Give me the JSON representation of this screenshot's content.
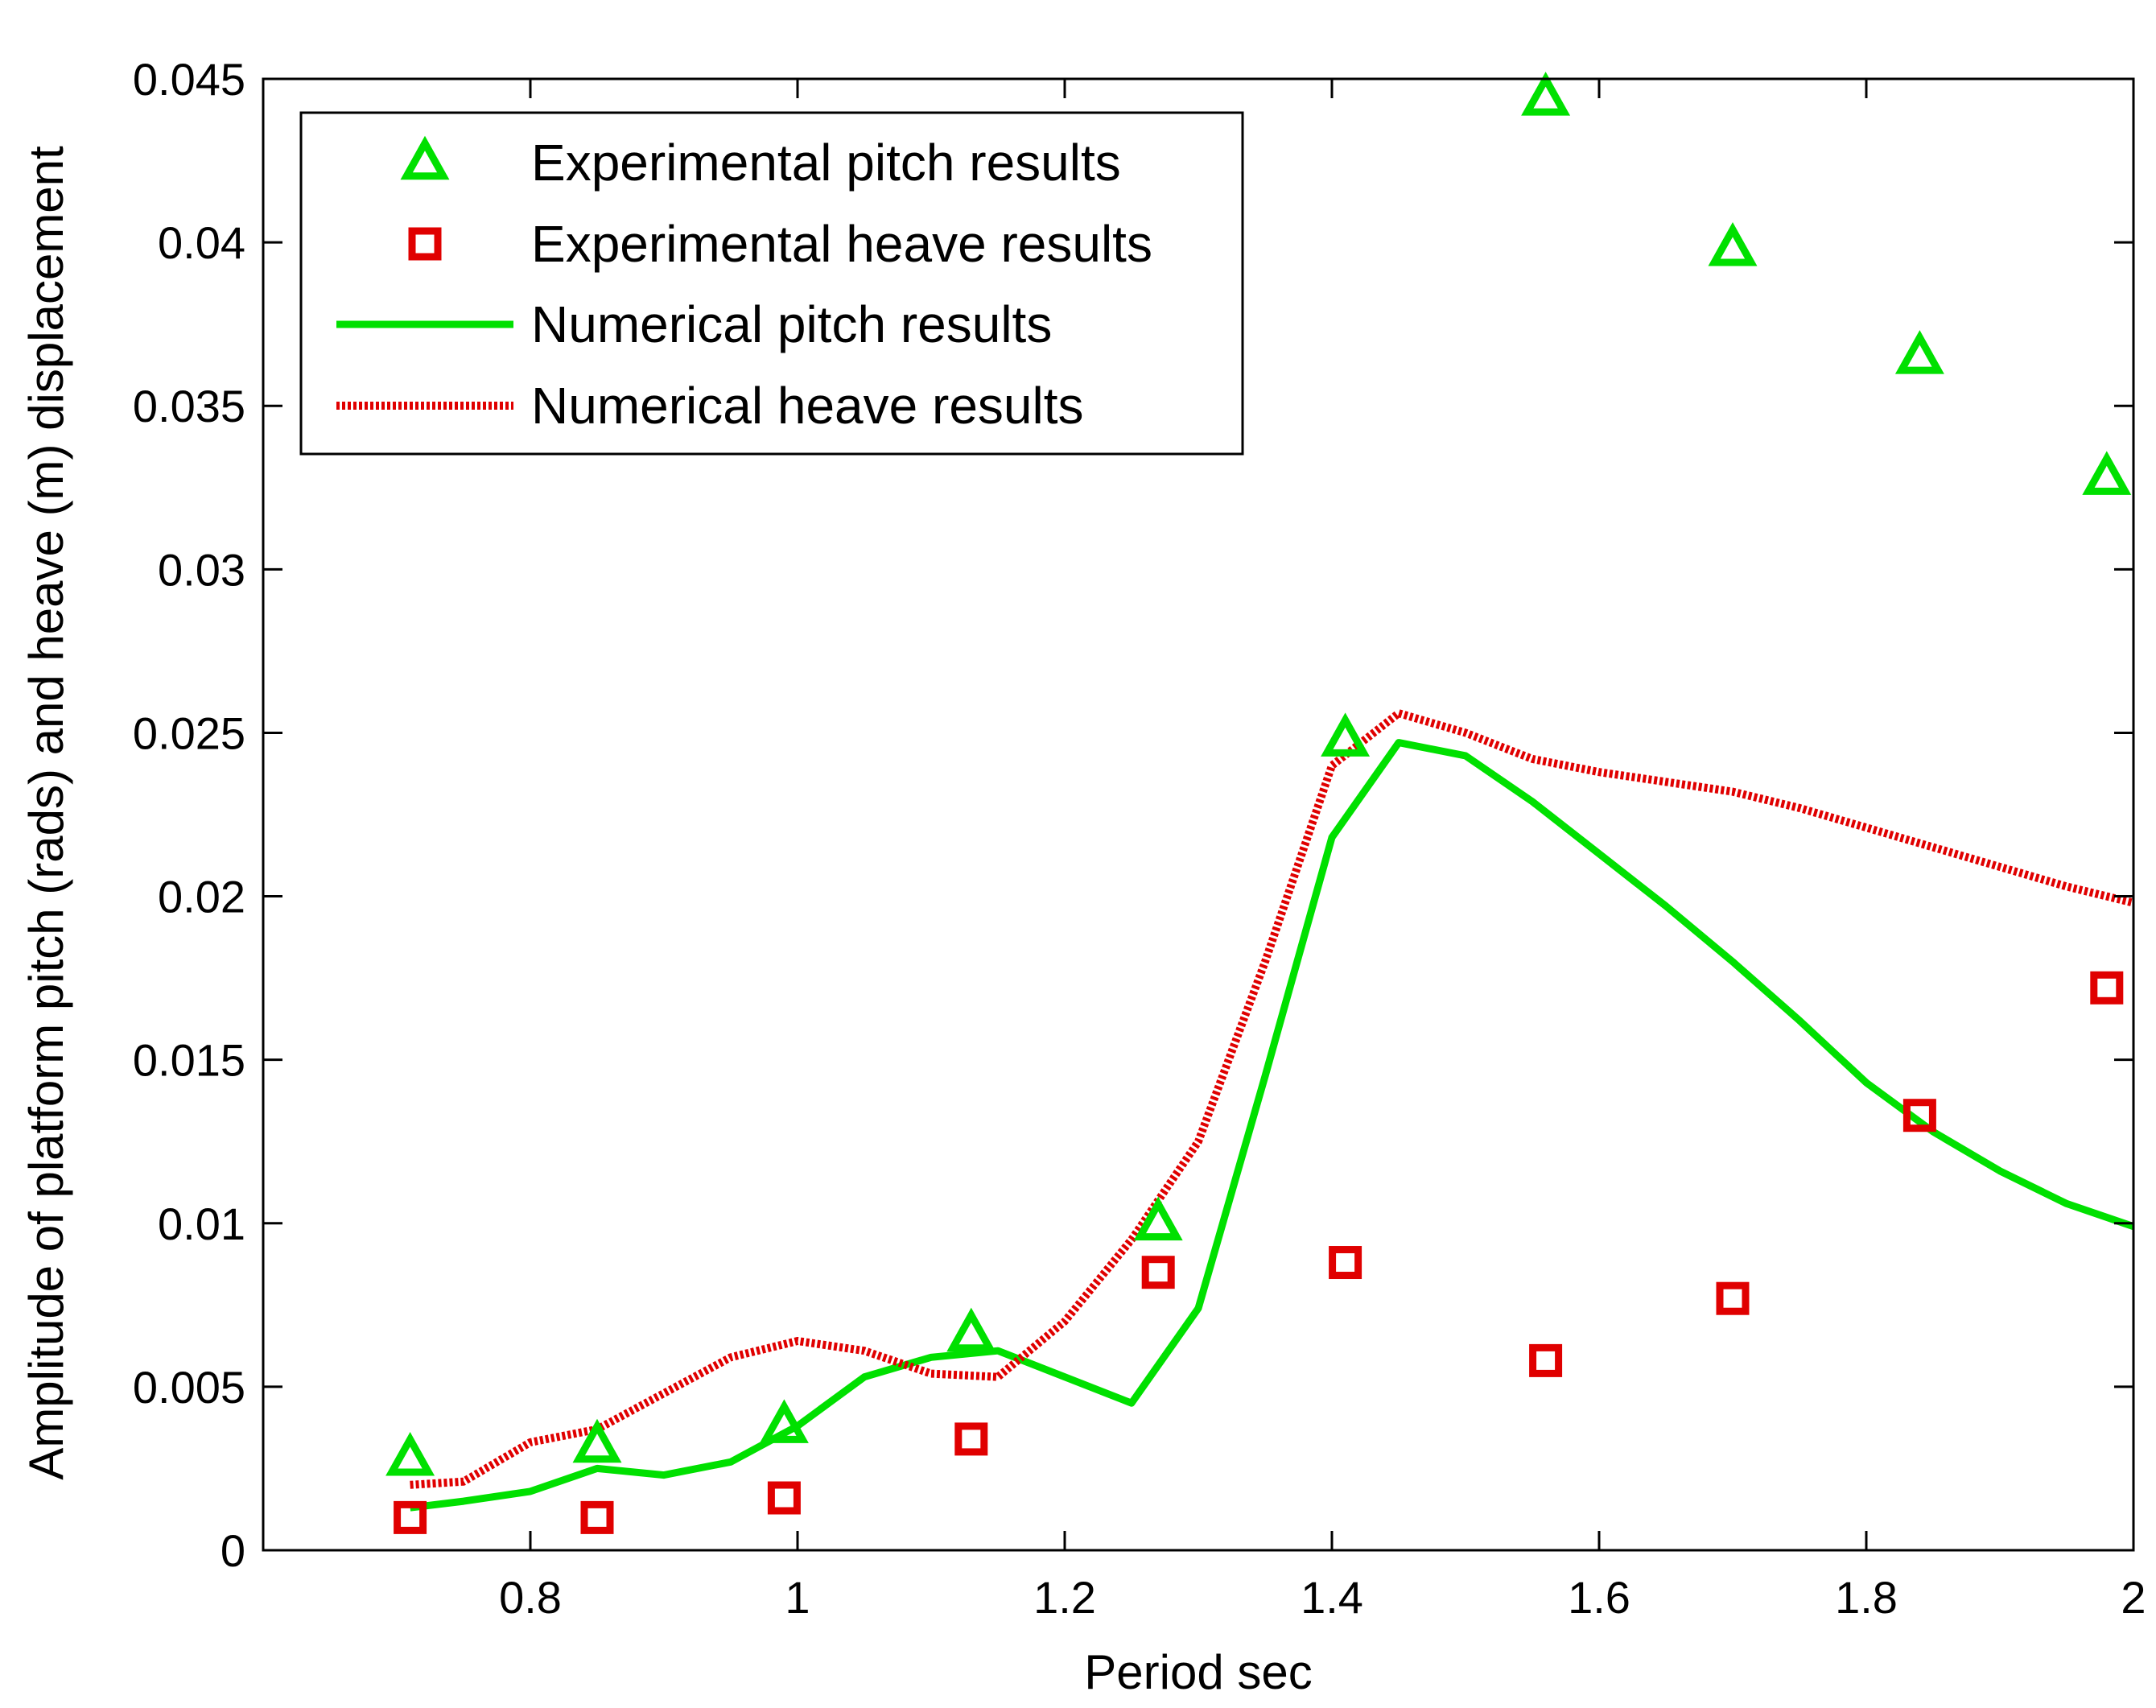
{
  "chart_data": {
    "type": "line",
    "title": "",
    "xlabel": "Period sec",
    "ylabel": "Amplitude of platform pitch (rads) and heave (m) displacement",
    "xlim": [
      0.6,
      2.0
    ],
    "ylim": [
      0,
      0.045
    ],
    "xticks": [
      0.8,
      1.0,
      1.2,
      1.4,
      1.6,
      1.8,
      2.0
    ],
    "xtick_labels": [
      "0.8",
      "1",
      "1.2",
      "1.4",
      "1.6",
      "1.8",
      "2"
    ],
    "yticks": [
      0,
      0.005,
      0.01,
      0.015,
      0.02,
      0.025,
      0.03,
      0.035,
      0.04,
      0.045
    ],
    "ytick_labels": [
      "0",
      "0.005",
      "0.01",
      "0.015",
      "0.02",
      "0.025",
      "0.03",
      "0.035",
      "0.04",
      "0.045"
    ],
    "grid": false,
    "legend_position": "top-left",
    "series": [
      {
        "name": "Experimental pitch results",
        "kind": "scatter",
        "marker": "triangle",
        "color": "#00e000",
        "x": [
          0.71,
          0.85,
          0.99,
          1.13,
          1.27,
          1.41,
          1.56,
          1.7,
          1.84,
          1.98
        ],
        "y": [
          0.0028,
          0.0032,
          0.0038,
          0.0066,
          0.01,
          0.0248,
          0.0444,
          0.0398,
          0.0365,
          0.0328
        ]
      },
      {
        "name": "Experimental heave results",
        "kind": "scatter",
        "marker": "square",
        "color": "#e00000",
        "x": [
          0.71,
          0.85,
          0.99,
          1.13,
          1.27,
          1.41,
          1.56,
          1.7,
          1.84,
          1.98
        ],
        "y": [
          0.001,
          0.001,
          0.0016,
          0.0034,
          0.0085,
          0.0088,
          0.0058,
          0.0077,
          0.0133,
          0.0172
        ]
      },
      {
        "name": "Numerical pitch results",
        "kind": "line",
        "style": "solid",
        "color": "#00e000",
        "x": [
          0.71,
          0.75,
          0.8,
          0.85,
          0.9,
          0.95,
          1.0,
          1.05,
          1.1,
          1.15,
          1.2,
          1.25,
          1.3,
          1.35,
          1.4,
          1.45,
          1.5,
          1.55,
          1.6,
          1.65,
          1.7,
          1.75,
          1.8,
          1.85,
          1.9,
          1.95,
          2.0
        ],
        "y": [
          0.0013,
          0.0015,
          0.0018,
          0.0025,
          0.0023,
          0.0027,
          0.0038,
          0.0053,
          0.0059,
          0.0061,
          0.0053,
          0.0045,
          0.0074,
          0.0145,
          0.0218,
          0.0247,
          0.0243,
          0.0229,
          0.0213,
          0.0197,
          0.018,
          0.0162,
          0.0143,
          0.0128,
          0.0116,
          0.0106,
          0.0099
        ]
      },
      {
        "name": "Numerical heave results",
        "kind": "line",
        "style": "dotted",
        "color": "#e00000",
        "x": [
          0.71,
          0.75,
          0.8,
          0.85,
          0.9,
          0.95,
          1.0,
          1.05,
          1.1,
          1.15,
          1.2,
          1.25,
          1.3,
          1.35,
          1.4,
          1.45,
          1.5,
          1.55,
          1.6,
          1.65,
          1.7,
          1.75,
          1.8,
          1.85,
          1.9,
          1.95,
          2.0
        ],
        "y": [
          0.002,
          0.0021,
          0.0033,
          0.0037,
          0.0048,
          0.0059,
          0.0064,
          0.0061,
          0.0054,
          0.0053,
          0.007,
          0.0095,
          0.0125,
          0.018,
          0.024,
          0.0256,
          0.025,
          0.0242,
          0.0238,
          0.0235,
          0.0232,
          0.0227,
          0.0221,
          0.0215,
          0.0209,
          0.0203,
          0.0198
        ]
      }
    ]
  }
}
